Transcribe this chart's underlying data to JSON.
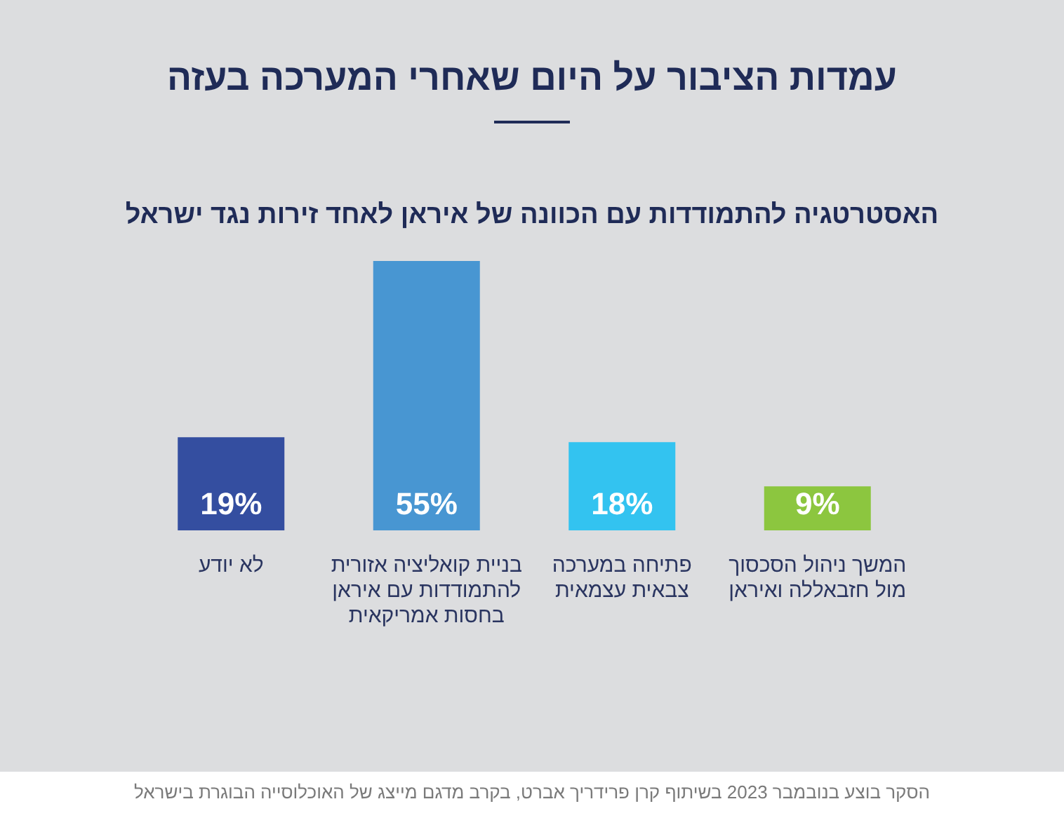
{
  "chart_data": {
    "type": "bar",
    "title": "עמדות הציבור על היום שאחרי המערכה בעזה",
    "subtitle": "האסטרטגיה להתמודדות עם הכוונה של איראן לאחד זירות נגד ישראל",
    "categories": [
      "לא יודע",
      "בניית קואליציה אזורית להתמודדות עם איראן בחסות אמריקאית",
      "פתיחה במערכה צבאית עצמאית",
      "המשך ניהול הסכסוך מול חזבאללה ואיראן"
    ],
    "values": [
      19,
      55,
      18,
      9
    ],
    "colors": [
      "#344ea0",
      "#4896d2",
      "#33c3f0",
      "#8cc63f"
    ],
    "value_labels": [
      "19%",
      "55%",
      "18%",
      "9%"
    ],
    "tick_labels": "x",
    "annotations": [
      "הסקר בוצע בנובמבר 2023 בשיתוף קרן פרידריך אברט, בקרב מדגם מייצג של האוכלוסייה הבוגרת בישראל"
    ]
  }
}
